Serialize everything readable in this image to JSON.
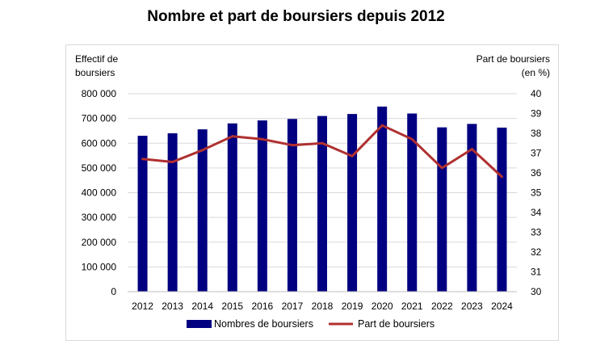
{
  "chart_data": {
    "type": "bar+line",
    "title": "Nombre et part de boursiers depuis 2012",
    "categories": [
      "2012",
      "2013",
      "2014",
      "2015",
      "2016",
      "2017",
      "2018",
      "2019",
      "2020",
      "2021",
      "2022",
      "2023",
      "2024"
    ],
    "series": [
      {
        "name": "Nombres de boursiers",
        "type": "bar",
        "axis": "left",
        "color": "#000080",
        "values": [
          630000,
          640000,
          656000,
          680000,
          692000,
          698000,
          710000,
          718000,
          748000,
          720000,
          664000,
          678000,
          663000
        ]
      },
      {
        "name": "Part de boursiers",
        "type": "line",
        "axis": "right",
        "color": "#b03030",
        "values": [
          36.7,
          36.55,
          37.15,
          37.85,
          37.7,
          37.4,
          37.5,
          36.85,
          38.4,
          37.7,
          36.25,
          37.2,
          35.8
        ]
      }
    ],
    "y_left": {
      "label_lines": [
        "Effectif de",
        "boursiers"
      ],
      "min": 0,
      "max": 800000,
      "ticks": [
        "0",
        "100 000",
        "200 000",
        "300 000",
        "400 000",
        "500 000",
        "600 000",
        "700 000",
        "800 000"
      ]
    },
    "y_right": {
      "label_lines": [
        "Part de boursiers",
        "(en %)"
      ],
      "min": 30,
      "max": 40,
      "ticks": [
        "30",
        "31",
        "32",
        "33",
        "34",
        "35",
        "36",
        "37",
        "38",
        "39",
        "40"
      ]
    },
    "grid": true,
    "legend_position": "bottom"
  }
}
